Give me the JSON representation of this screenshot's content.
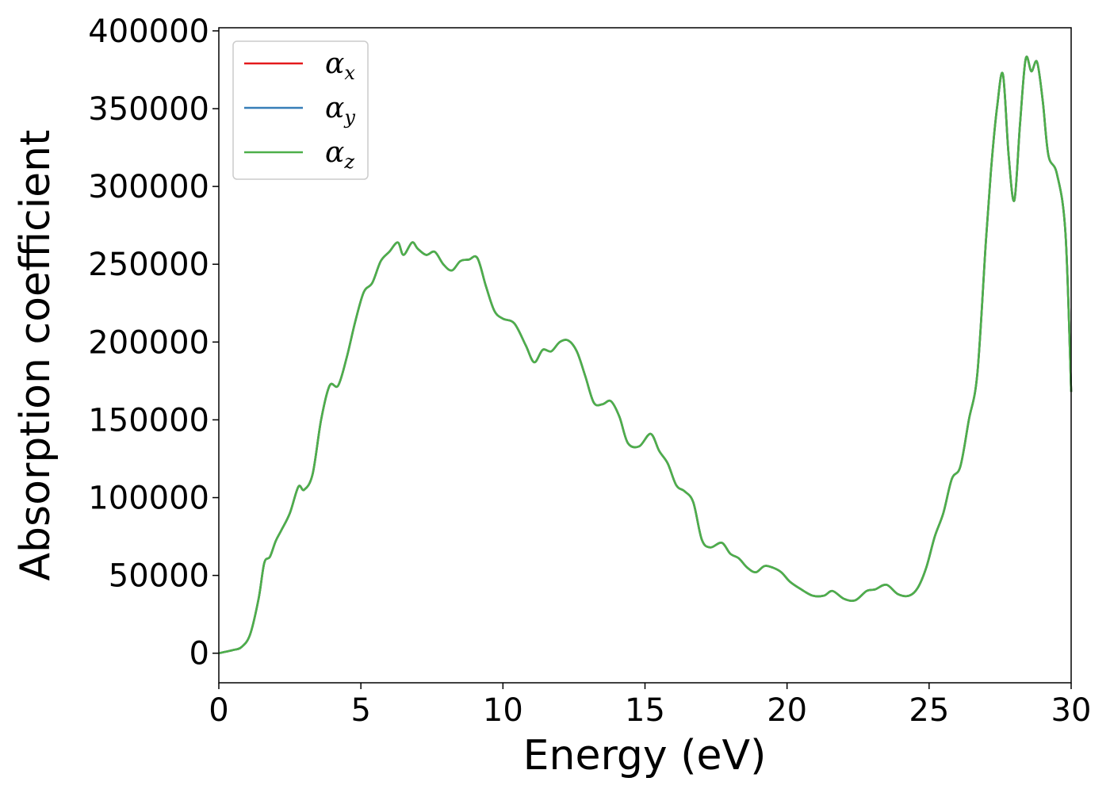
{
  "chart_data": {
    "type": "line",
    "xlabel": "Energy (eV)",
    "ylabel": "Absorption coefficient",
    "xlim": [
      0,
      30
    ],
    "ylim": [
      -19000,
      402000
    ],
    "xticks": [
      "0",
      "5",
      "10",
      "15",
      "20",
      "25",
      "30"
    ],
    "xtick_values": [
      0,
      5,
      10,
      15,
      20,
      25,
      30
    ],
    "yticks": [
      "0",
      "50000",
      "100000",
      "150000",
      "200000",
      "250000",
      "300000",
      "350000",
      "400000"
    ],
    "ytick_values": [
      0,
      50000,
      100000,
      150000,
      200000,
      250000,
      300000,
      350000,
      400000
    ],
    "grid": false,
    "legend_position": "top-left",
    "x": [
      0,
      0.5,
      0.8,
      1.1,
      1.4,
      1.6,
      1.8,
      2.0,
      2.2,
      2.5,
      2.8,
      3.0,
      3.3,
      3.6,
      3.9,
      4.2,
      4.5,
      4.8,
      5.1,
      5.4,
      5.7,
      6.0,
      6.3,
      6.5,
      6.8,
      7.0,
      7.3,
      7.6,
      7.9,
      8.2,
      8.5,
      8.8,
      9.1,
      9.4,
      9.7,
      10.0,
      10.4,
      10.8,
      11.1,
      11.4,
      11.7,
      12.0,
      12.3,
      12.6,
      12.9,
      13.2,
      13.5,
      13.8,
      14.1,
      14.4,
      14.8,
      15.2,
      15.5,
      15.8,
      16.1,
      16.4,
      16.7,
      17.0,
      17.3,
      17.7,
      18.0,
      18.3,
      18.6,
      18.9,
      19.2,
      19.5,
      19.8,
      20.1,
      20.5,
      20.9,
      21.3,
      21.6,
      22.0,
      22.4,
      22.8,
      23.1,
      23.5,
      23.9,
      24.3,
      24.6,
      24.9,
      25.2,
      25.5,
      25.8,
      26.1,
      26.4,
      26.7,
      27.0,
      27.2,
      27.4,
      27.6,
      27.8,
      28.0,
      28.2,
      28.4,
      28.6,
      28.8,
      29.0,
      29.2,
      29.5,
      29.8,
      30.0
    ],
    "series": [
      {
        "name": "α_x",
        "sym": "α",
        "sub": "x",
        "color": "#e41a1c",
        "values": [
          0,
          2000,
          4000,
          12000,
          35000,
          58000,
          62000,
          72000,
          79000,
          90000,
          107000,
          105000,
          115000,
          150000,
          172000,
          172000,
          190000,
          213000,
          232000,
          238000,
          252000,
          258000,
          264000,
          256000,
          264000,
          260000,
          256000,
          258000,
          250000,
          246000,
          252000,
          253000,
          254000,
          236000,
          220000,
          215000,
          212000,
          198000,
          187000,
          195000,
          194000,
          200000,
          201000,
          194000,
          178000,
          161000,
          160000,
          162000,
          152000,
          135000,
          133000,
          141000,
          130000,
          122000,
          108000,
          104000,
          97000,
          73000,
          68000,
          71000,
          64000,
          61000,
          55000,
          52000,
          56000,
          55000,
          52000,
          46000,
          41000,
          37000,
          37000,
          40000,
          35000,
          34000,
          40000,
          41000,
          44000,
          38000,
          37000,
          42000,
          55000,
          75000,
          90000,
          112000,
          120000,
          150000,
          180000,
          265000,
          315000,
          352000,
          372000,
          320000,
          291000,
          340000,
          382000,
          374000,
          380000,
          355000,
          320000,
          308000,
          270000,
          168000
        ]
      },
      {
        "name": "α_y",
        "sym": "α",
        "sub": "y",
        "color": "#377eb8",
        "values": [
          0,
          2000,
          4000,
          12000,
          35000,
          58000,
          62000,
          72000,
          79000,
          90000,
          107000,
          105000,
          115000,
          150000,
          172000,
          172000,
          190000,
          213000,
          232000,
          238000,
          252000,
          258000,
          264000,
          256000,
          264000,
          260000,
          256000,
          258000,
          250000,
          246000,
          252000,
          253000,
          254000,
          236000,
          220000,
          215000,
          212000,
          198000,
          187000,
          195000,
          194000,
          200000,
          201000,
          194000,
          178000,
          161000,
          160000,
          162000,
          152000,
          135000,
          133000,
          141000,
          130000,
          122000,
          108000,
          104000,
          97000,
          73000,
          68000,
          71000,
          64000,
          61000,
          55000,
          52000,
          56000,
          55000,
          52000,
          46000,
          41000,
          37000,
          37000,
          40000,
          35000,
          34000,
          40000,
          41000,
          44000,
          38000,
          37000,
          42000,
          55000,
          75000,
          90000,
          112000,
          120000,
          150000,
          180000,
          265000,
          315000,
          352000,
          372000,
          320000,
          291000,
          340000,
          382000,
          374000,
          380000,
          355000,
          320000,
          308000,
          270000,
          168000
        ]
      },
      {
        "name": "α_z",
        "sym": "α",
        "sub": "z",
        "color": "#4daf4a",
        "values": [
          0,
          2000,
          4000,
          12000,
          35000,
          58000,
          62000,
          72000,
          79000,
          90000,
          107000,
          105000,
          115000,
          150000,
          172000,
          172000,
          190000,
          213000,
          232000,
          238000,
          252000,
          258000,
          264000,
          256000,
          264000,
          260000,
          256000,
          258000,
          250000,
          246000,
          252000,
          253000,
          254000,
          236000,
          220000,
          215000,
          212000,
          198000,
          187000,
          195000,
          194000,
          200000,
          201000,
          194000,
          178000,
          161000,
          160000,
          162000,
          152000,
          135000,
          133000,
          141000,
          130000,
          122000,
          108000,
          104000,
          97000,
          73000,
          68000,
          71000,
          64000,
          61000,
          55000,
          52000,
          56000,
          55000,
          52000,
          46000,
          41000,
          37000,
          37000,
          40000,
          35000,
          34000,
          40000,
          41000,
          44000,
          38000,
          37000,
          42000,
          55000,
          75000,
          90000,
          112000,
          120000,
          150000,
          180000,
          265000,
          315000,
          352000,
          372000,
          320000,
          291000,
          340000,
          382000,
          374000,
          380000,
          355000,
          320000,
          308000,
          270000,
          168000
        ]
      }
    ]
  }
}
